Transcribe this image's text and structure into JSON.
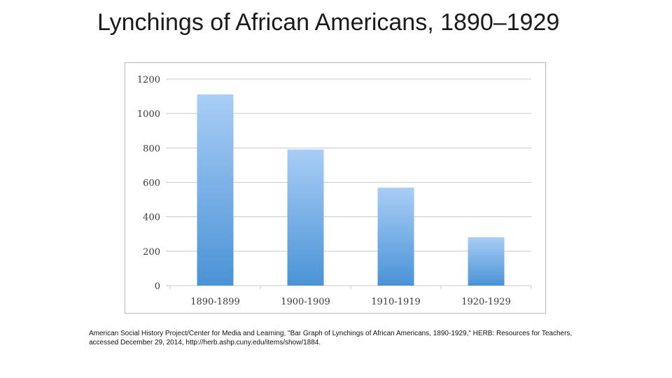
{
  "title": "Lynchings of African Americans, 1890–1929",
  "citation": "American Social History Project/Center for Media and Learning, \"Bar Graph of Lynchings of African Americans, 1890-1929,\" HERB: Resources for Teachers, accessed December 29, 2014, http://herb.ashp.cuny.edu/items/show/1884.",
  "colors": {
    "bar_top": "#a9cdf6",
    "bar_bottom": "#4a93d6",
    "grid": "#c8c8c8",
    "frame": "#b8b8b8"
  },
  "chart_data": {
    "type": "bar",
    "categories": [
      "1890-1899",
      "1900-1909",
      "1910-1919",
      "1920-1929"
    ],
    "values": [
      1111,
      791,
      569,
      281
    ],
    "ylim": [
      0,
      1200
    ],
    "yticks": [
      0,
      200,
      400,
      600,
      800,
      1000,
      1200
    ],
    "grid": true,
    "legend": "none"
  }
}
